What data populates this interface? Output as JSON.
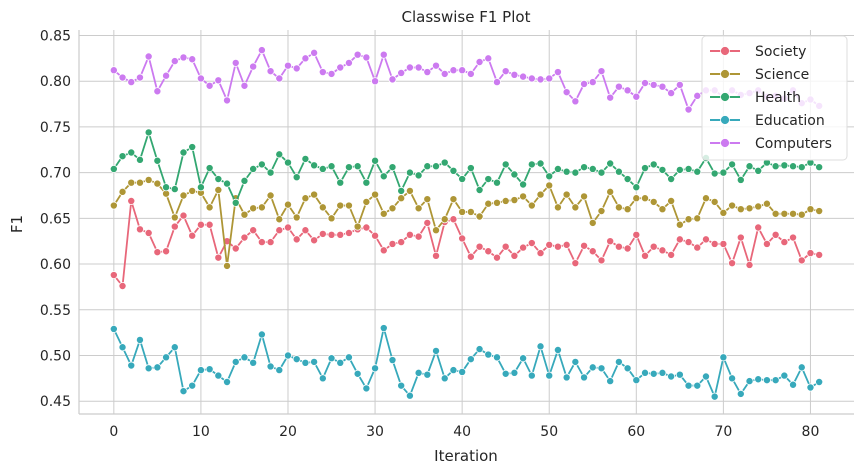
{
  "chart_data": {
    "type": "line",
    "title": "Classwise F1 Plot",
    "xlabel": "Iteration",
    "ylabel": "F1",
    "xlim": [
      -4,
      85
    ],
    "ylim": [
      0.436,
      0.856
    ],
    "xticks": [
      0,
      10,
      20,
      30,
      40,
      50,
      60,
      70,
      80
    ],
    "yticks": [
      0.45,
      0.5,
      0.55,
      0.6,
      0.65,
      0.7,
      0.75,
      0.8,
      0.85
    ],
    "ytick_labels": [
      "0.45",
      "0.50",
      "0.55",
      "0.60",
      "0.65",
      "0.70",
      "0.75",
      "0.80",
      "0.85"
    ],
    "grid": true,
    "legend_position": "top-right",
    "series": [
      {
        "name": "Society",
        "color": "#e8677a",
        "values": [
          0.588,
          0.576,
          0.669,
          0.638,
          0.634,
          0.613,
          0.614,
          0.641,
          0.653,
          0.631,
          0.643,
          0.643,
          0.607,
          0.625,
          0.617,
          0.629,
          0.637,
          0.624,
          0.624,
          0.637,
          0.64,
          0.627,
          0.637,
          0.626,
          0.633,
          0.632,
          0.632,
          0.634,
          0.638,
          0.64,
          0.631,
          0.615,
          0.622,
          0.624,
          0.632,
          0.63,
          0.645,
          0.609,
          0.646,
          0.649,
          0.628,
          0.608,
          0.619,
          0.614,
          0.607,
          0.619,
          0.609,
          0.618,
          0.623,
          0.612,
          0.621,
          0.619,
          0.621,
          0.601,
          0.62,
          0.614,
          0.604,
          0.625,
          0.619,
          0.617,
          0.632,
          0.609,
          0.619,
          0.615,
          0.61,
          0.627,
          0.624,
          0.618,
          0.627,
          0.622,
          0.622,
          0.601,
          0.629,
          0.599,
          0.64,
          0.622,
          0.632,
          0.624,
          0.629,
          0.604,
          0.612,
          0.61
        ]
      },
      {
        "name": "Science",
        "color": "#ae9636",
        "values": [
          0.664,
          0.679,
          0.689,
          0.689,
          0.692,
          0.688,
          0.677,
          0.651,
          0.675,
          0.68,
          0.678,
          0.662,
          0.681,
          0.598,
          0.672,
          0.654,
          0.661,
          0.662,
          0.675,
          0.649,
          0.665,
          0.651,
          0.672,
          0.676,
          0.662,
          0.65,
          0.664,
          0.664,
          0.641,
          0.668,
          0.676,
          0.655,
          0.661,
          0.672,
          0.68,
          0.661,
          0.671,
          0.637,
          0.649,
          0.671,
          0.657,
          0.657,
          0.652,
          0.666,
          0.667,
          0.669,
          0.67,
          0.674,
          0.664,
          0.676,
          0.686,
          0.662,
          0.676,
          0.662,
          0.674,
          0.645,
          0.658,
          0.679,
          0.662,
          0.66,
          0.672,
          0.672,
          0.668,
          0.66,
          0.669,
          0.643,
          0.649,
          0.65,
          0.672,
          0.668,
          0.656,
          0.664,
          0.66,
          0.661,
          0.663,
          0.666,
          0.655,
          0.655,
          0.655,
          0.654,
          0.66,
          0.658
        ]
      },
      {
        "name": "Health",
        "color": "#33a771",
        "values": [
          0.704,
          0.718,
          0.722,
          0.714,
          0.744,
          0.713,
          0.684,
          0.682,
          0.722,
          0.728,
          0.684,
          0.705,
          0.693,
          0.688,
          0.667,
          0.691,
          0.704,
          0.709,
          0.7,
          0.72,
          0.711,
          0.695,
          0.715,
          0.708,
          0.704,
          0.707,
          0.689,
          0.706,
          0.707,
          0.689,
          0.713,
          0.696,
          0.706,
          0.68,
          0.7,
          0.697,
          0.707,
          0.707,
          0.711,
          0.702,
          0.693,
          0.705,
          0.681,
          0.693,
          0.689,
          0.709,
          0.698,
          0.687,
          0.709,
          0.71,
          0.696,
          0.704,
          0.701,
          0.7,
          0.706,
          0.704,
          0.7,
          0.71,
          0.701,
          0.693,
          0.684,
          0.705,
          0.709,
          0.703,
          0.693,
          0.703,
          0.704,
          0.701,
          0.716,
          0.699,
          0.7,
          0.709,
          0.692,
          0.707,
          0.702,
          0.711,
          0.707,
          0.708,
          0.707,
          0.706,
          0.711,
          0.706
        ]
      },
      {
        "name": "Education",
        "color": "#37a9bb",
        "values": [
          0.529,
          0.509,
          0.489,
          0.517,
          0.486,
          0.487,
          0.498,
          0.509,
          0.461,
          0.467,
          0.484,
          0.485,
          0.478,
          0.471,
          0.493,
          0.498,
          0.492,
          0.523,
          0.488,
          0.484,
          0.5,
          0.496,
          0.492,
          0.493,
          0.475,
          0.497,
          0.492,
          0.498,
          0.48,
          0.464,
          0.486,
          0.53,
          0.495,
          0.467,
          0.456,
          0.481,
          0.479,
          0.505,
          0.475,
          0.484,
          0.482,
          0.496,
          0.507,
          0.501,
          0.498,
          0.48,
          0.481,
          0.497,
          0.478,
          0.51,
          0.478,
          0.506,
          0.476,
          0.493,
          0.476,
          0.487,
          0.486,
          0.472,
          0.493,
          0.486,
          0.473,
          0.481,
          0.48,
          0.481,
          0.477,
          0.479,
          0.467,
          0.467,
          0.477,
          0.455,
          0.498,
          0.475,
          0.458,
          0.472,
          0.474,
          0.473,
          0.473,
          0.478,
          0.468,
          0.487,
          0.465,
          0.471
        ]
      },
      {
        "name": "Computers",
        "color": "#cc7af0",
        "values": [
          0.812,
          0.804,
          0.799,
          0.804,
          0.827,
          0.789,
          0.806,
          0.822,
          0.826,
          0.824,
          0.803,
          0.795,
          0.801,
          0.779,
          0.82,
          0.795,
          0.816,
          0.834,
          0.811,
          0.803,
          0.817,
          0.814,
          0.825,
          0.831,
          0.81,
          0.808,
          0.815,
          0.82,
          0.829,
          0.826,
          0.8,
          0.829,
          0.802,
          0.809,
          0.815,
          0.815,
          0.81,
          0.817,
          0.808,
          0.812,
          0.812,
          0.808,
          0.821,
          0.825,
          0.799,
          0.811,
          0.807,
          0.805,
          0.803,
          0.802,
          0.803,
          0.81,
          0.788,
          0.778,
          0.797,
          0.799,
          0.811,
          0.782,
          0.794,
          0.79,
          0.783,
          0.798,
          0.796,
          0.794,
          0.787,
          0.796,
          0.769,
          0.784,
          0.79,
          0.79,
          0.783,
          0.79,
          0.785,
          0.787,
          0.79,
          0.783,
          0.784,
          0.781,
          0.79,
          0.776,
          0.78,
          0.773
        ]
      }
    ]
  }
}
